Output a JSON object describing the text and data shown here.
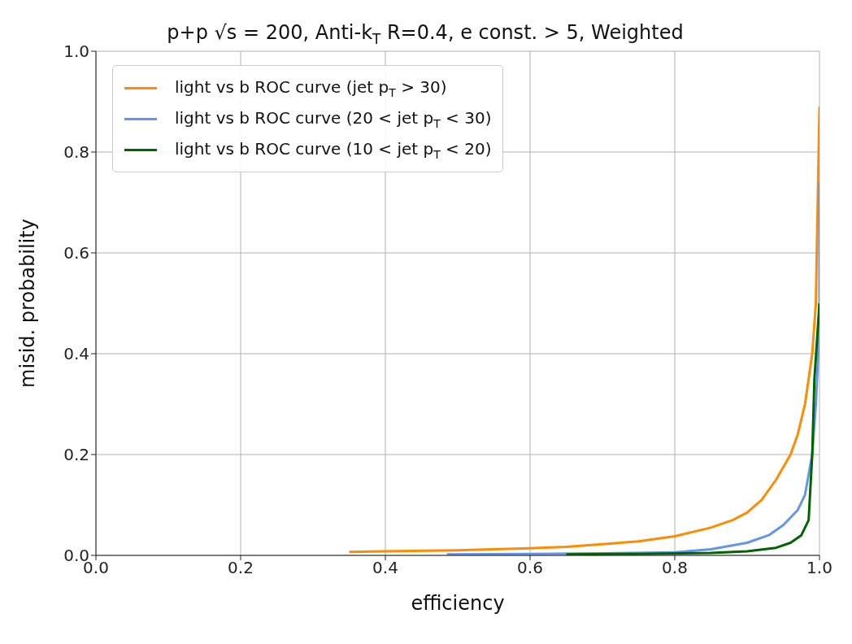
{
  "chart_data": {
    "type": "line",
    "title": "p+p √s = 200, Anti-k$_{T}$ R=0.4, e const. > 5, Weighted",
    "xlabel": "efficiency",
    "ylabel": "misid. probability",
    "xlim": [
      0,
      1
    ],
    "ylim": [
      0,
      1
    ],
    "xticks": [
      {
        "value": 0,
        "label": "0.0"
      },
      0.2,
      0.4,
      0.6,
      0.8,
      {
        "value": 1,
        "label": "1.0"
      }
    ],
    "yticks": [
      {
        "value": 0,
        "label": "0.0"
      },
      0.2,
      0.4,
      0.6,
      0.8,
      {
        "value": 1,
        "label": "1.0"
      }
    ],
    "grid": true,
    "legend": "top left",
    "marker": "none",
    "line_style": "solid",
    "series": [
      {
        "name": "light vs b ROC curve (jet p$_{T}$ > 30)",
        "color": "#ff8c00",
        "x": [
          0.35,
          0.4,
          0.5,
          0.6,
          0.65,
          0.7,
          0.75,
          0.8,
          0.85,
          0.88,
          0.9,
          0.92,
          0.94,
          0.96,
          0.97,
          0.98,
          0.99,
          0.995,
          1.0
        ],
        "values": [
          0.007,
          0.008,
          0.01,
          0.014,
          0.017,
          0.022,
          0.028,
          0.038,
          0.055,
          0.07,
          0.085,
          0.11,
          0.15,
          0.2,
          0.24,
          0.3,
          0.4,
          0.5,
          0.89
        ]
      },
      {
        "name": "light vs b ROC curve (20 < jet p$_{T}$ < 30)",
        "color": "#6495ed",
        "x": [
          0.485,
          0.6,
          0.7,
          0.8,
          0.85,
          0.9,
          0.93,
          0.95,
          0.97,
          0.98,
          0.99,
          0.995,
          1.0,
          1.0
        ],
        "values": [
          0.002,
          0.003,
          0.004,
          0.006,
          0.012,
          0.025,
          0.04,
          0.06,
          0.09,
          0.12,
          0.2,
          0.3,
          0.45,
          0.74
        ]
      },
      {
        "name": "light vs b ROC curve (10 < jet p$_{T}$ < 20)",
        "color": "#006400",
        "x": [
          0.65,
          0.75,
          0.85,
          0.9,
          0.94,
          0.96,
          0.975,
          0.985,
          0.99,
          0.993,
          1.0
        ],
        "values": [
          0.002,
          0.003,
          0.005,
          0.008,
          0.015,
          0.025,
          0.04,
          0.07,
          0.2,
          0.35,
          0.5
        ]
      }
    ]
  }
}
